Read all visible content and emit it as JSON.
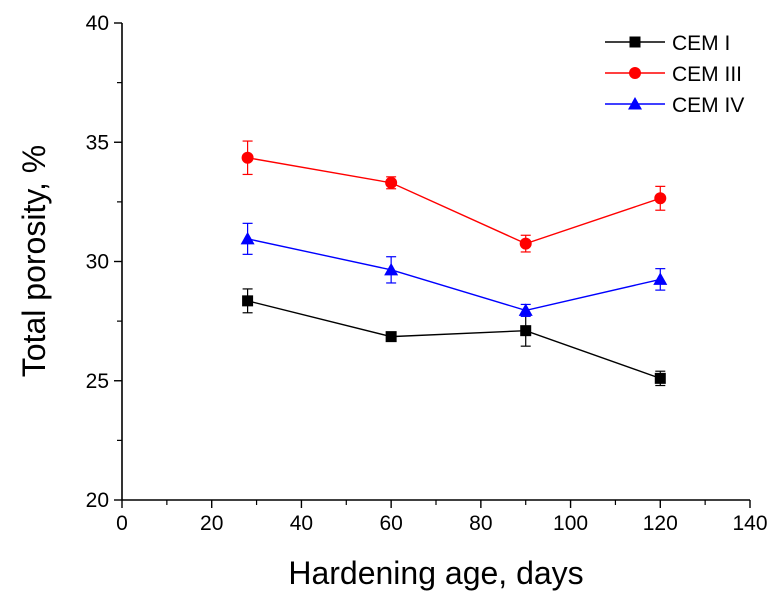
{
  "chart_data": {
    "type": "line",
    "title": "",
    "xlabel": "Hardening age, days",
    "ylabel": "Total porosity, %",
    "xlim": [
      0,
      140
    ],
    "ylim": [
      20,
      40
    ],
    "x_major_ticks": [
      0,
      20,
      40,
      60,
      80,
      100,
      120,
      140
    ],
    "x_tick_labels": [
      "0",
      "20",
      "40",
      "60",
      "80",
      "100",
      "120",
      "140"
    ],
    "y_major_ticks": [
      20,
      25,
      30,
      35,
      40
    ],
    "y_tick_labels": [
      "20",
      "25",
      "30",
      "35",
      "40"
    ],
    "grid": false,
    "legend_position": "top-right",
    "series": [
      {
        "name": "CEM I",
        "color": "#000000",
        "marker": "square",
        "x": [
          28,
          60,
          90,
          120
        ],
        "y": [
          28.35,
          26.85,
          27.1,
          25.1
        ],
        "err": [
          0.5,
          0.15,
          0.65,
          0.3
        ]
      },
      {
        "name": "CEM III",
        "color": "#ff0000",
        "marker": "circle",
        "x": [
          28,
          60,
          90,
          120
        ],
        "y": [
          34.35,
          33.3,
          30.75,
          32.65
        ],
        "err": [
          0.7,
          0.25,
          0.35,
          0.5
        ]
      },
      {
        "name": "CEM IV",
        "color": "#0000ff",
        "marker": "triangle",
        "x": [
          28,
          60,
          90,
          120
        ],
        "y": [
          30.95,
          29.65,
          27.95,
          29.25
        ],
        "err": [
          0.65,
          0.55,
          0.25,
          0.45
        ]
      }
    ]
  }
}
